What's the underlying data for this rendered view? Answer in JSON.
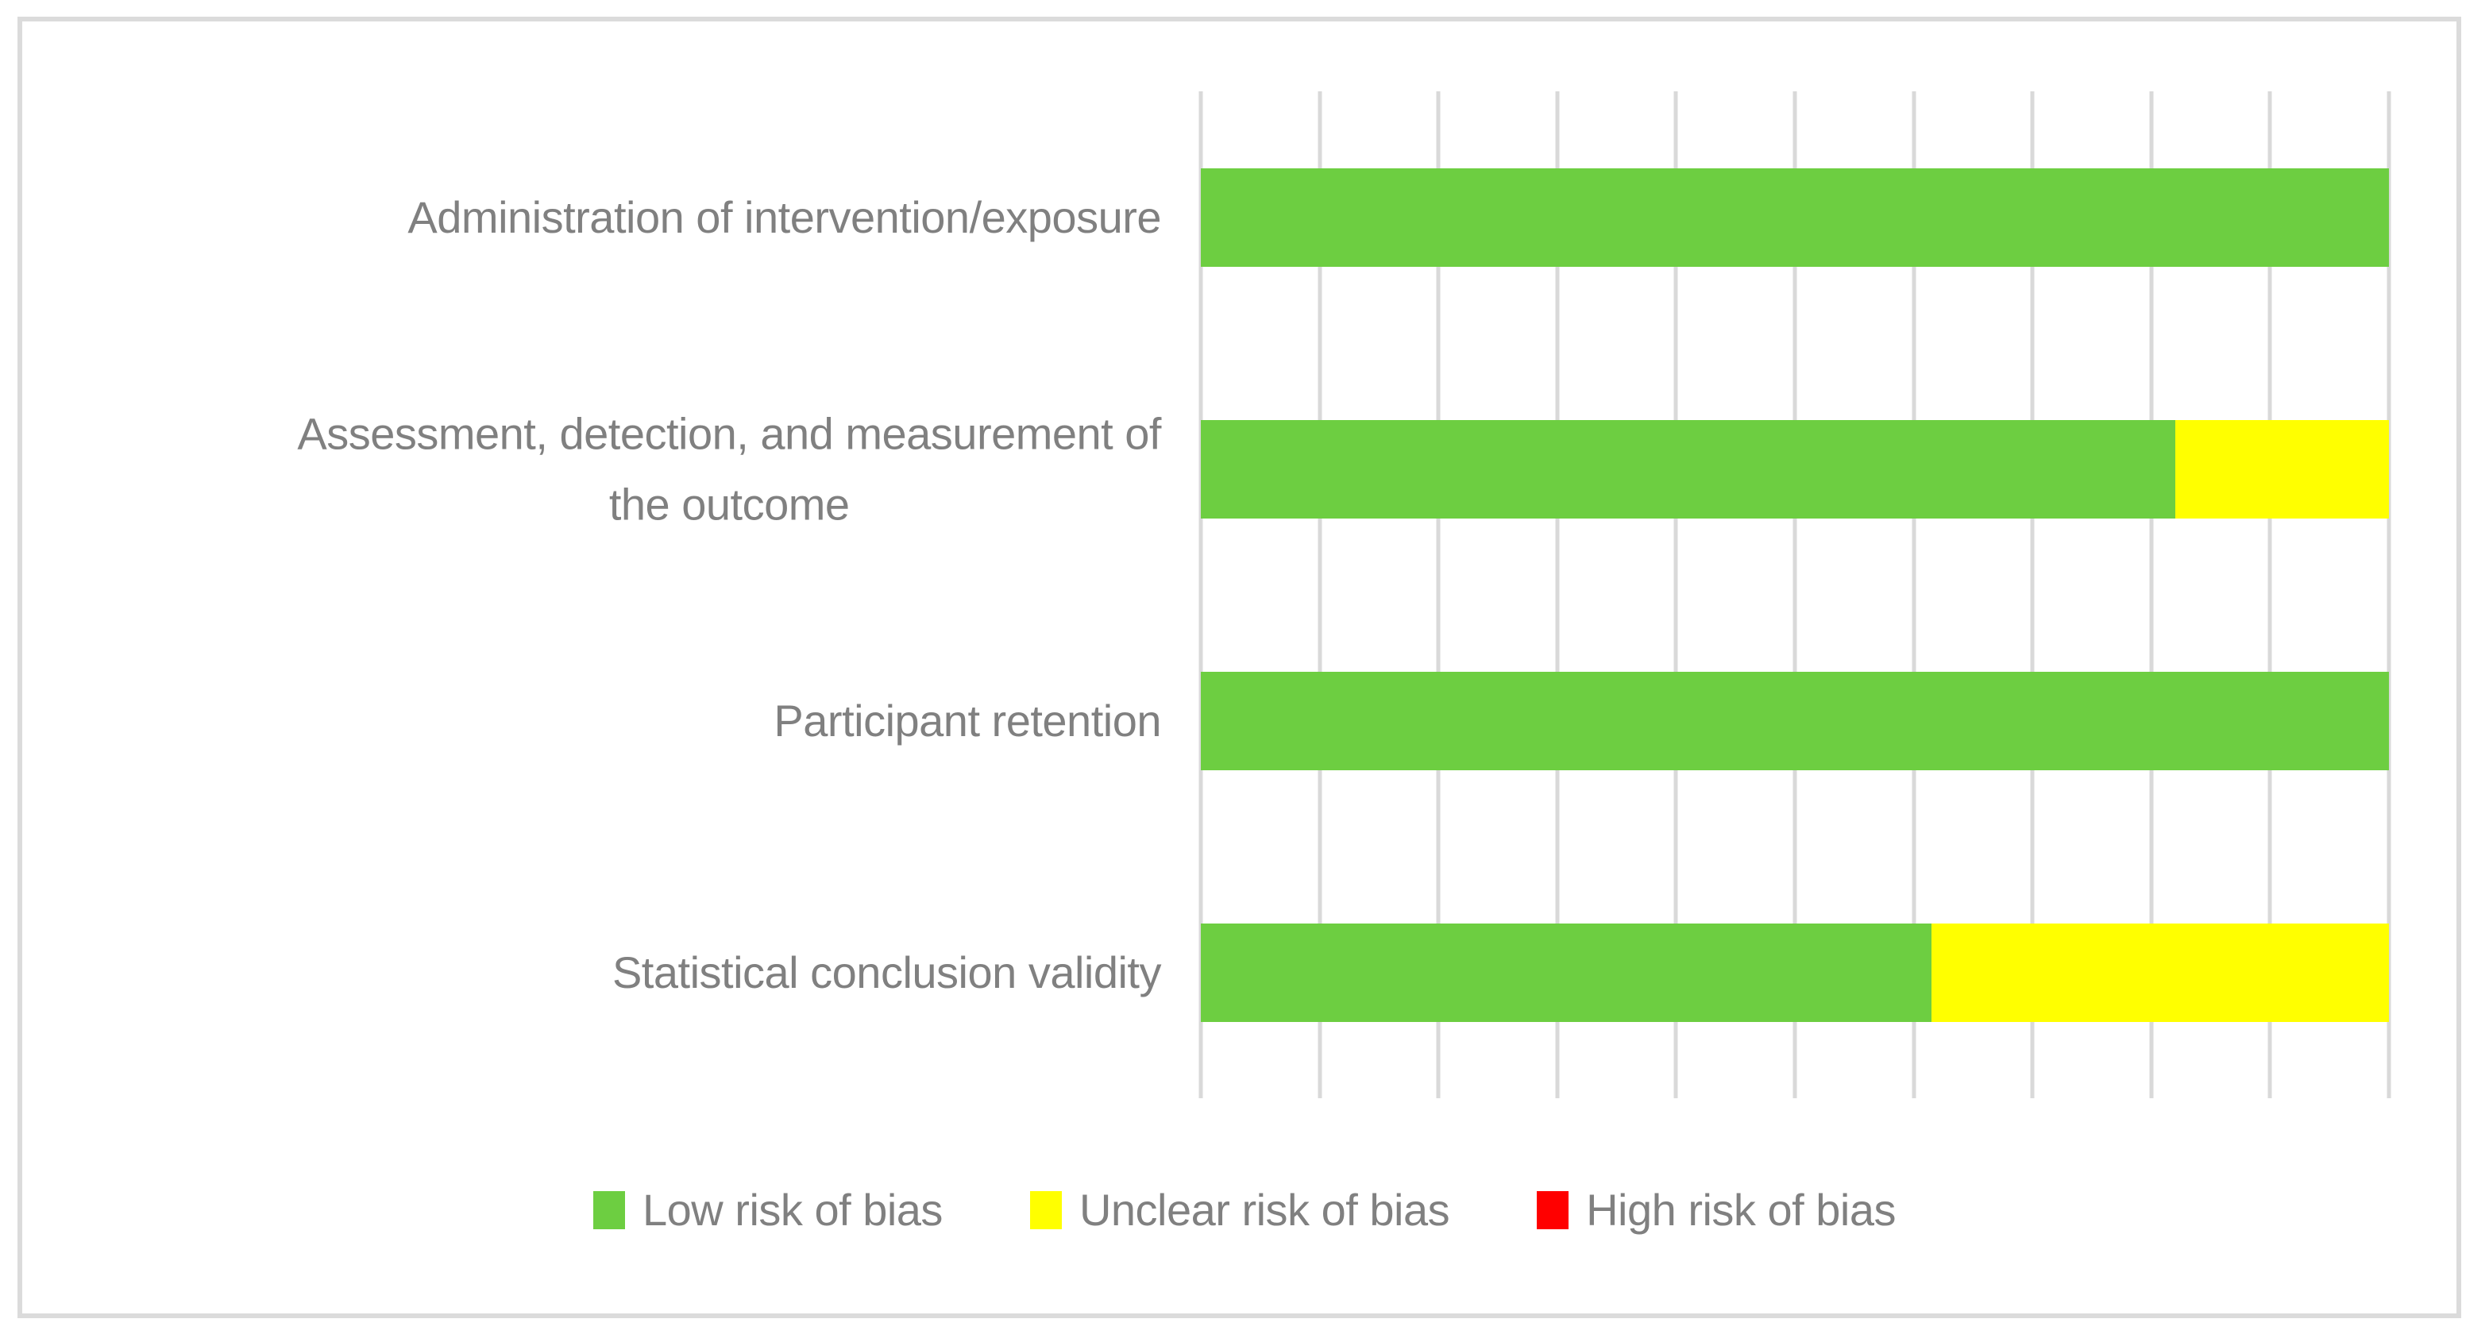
{
  "chart": {
    "background": "#FFFFFF",
    "border_color": "#DBDBDB",
    "gridline_color": "#D9D9D9",
    "text_color": "#808080"
  },
  "chart_data": {
    "type": "bar",
    "orientation": "horizontal",
    "stacked": true,
    "title": "",
    "xlabel": "",
    "ylabel": "",
    "categories": [
      "Administration of intervention/exposure",
      "Assessment, detection, and measurement of\nthe outcome",
      "Participant retention",
      "Statistical conclusion validity"
    ],
    "series": [
      {
        "name": "Low risk of bias",
        "color": "#6DCE41",
        "values": [
          100,
          82,
          100,
          61.5
        ]
      },
      {
        "name": "Unclear risk of bias",
        "color": "#FFFF00",
        "values": [
          0,
          18,
          0,
          38.5
        ]
      },
      {
        "name": "High risk of bias",
        "color": "#FF0000",
        "values": [
          0,
          0,
          0,
          0
        ]
      }
    ],
    "xlim": [
      0,
      100
    ],
    "gridline_step_percent": 10,
    "grid": true,
    "axis_tick_labels_visible": false,
    "legend_position": "bottom"
  }
}
